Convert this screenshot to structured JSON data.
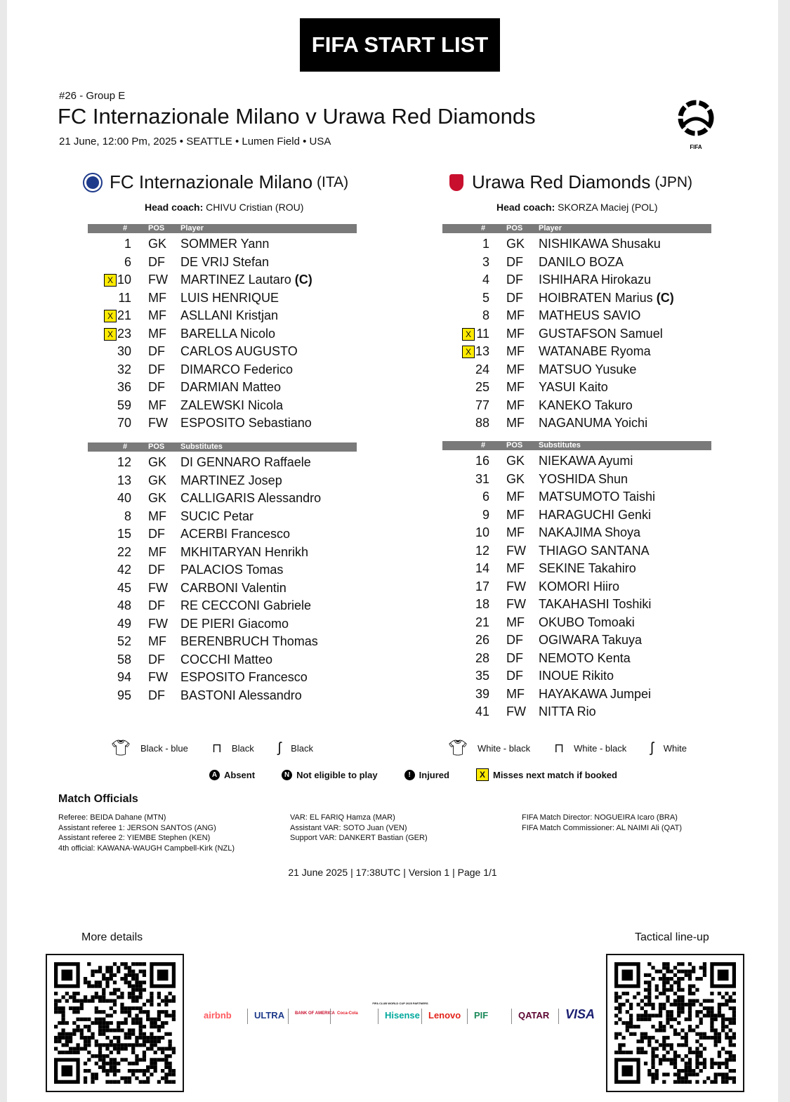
{
  "banner": "FIFA START LIST",
  "match": {
    "number": "#26  -  Group E",
    "title": "FC Internazionale Milano v Urawa Red Diamonds",
    "details": "21 June, 12:00 Pm, 2025 • SEATTLE • Lumen Field • USA",
    "logo_text": "CLUB WORLD CUP 25 FIFA"
  },
  "home": {
    "name": "FC Internazionale Milano",
    "country": "(ITA)",
    "coach_label": "Head coach:",
    "coach": "CHIVU Cristian (ROU)",
    "crest_color": "#1e3a8a",
    "starters_header": [
      "#",
      "POS",
      "Player"
    ],
    "starters": [
      {
        "num": "1",
        "pos": "GK",
        "name": "SOMMER Yann"
      },
      {
        "num": "6",
        "pos": "DF",
        "name": "DE VRIJ Stefan"
      },
      {
        "num": "10",
        "pos": "FW",
        "name": "MARTINEZ Lautaro",
        "captain": "(C)",
        "booked_warning": true
      },
      {
        "num": "11",
        "pos": "MF",
        "name": "LUIS HENRIQUE"
      },
      {
        "num": "21",
        "pos": "MF",
        "name": "ASLLANI Kristjan",
        "booked_warning": true
      },
      {
        "num": "23",
        "pos": "MF",
        "name": "BARELLA Nicolo",
        "booked_warning": true
      },
      {
        "num": "30",
        "pos": "DF",
        "name": "CARLOS AUGUSTO"
      },
      {
        "num": "32",
        "pos": "DF",
        "name": "DIMARCO Federico"
      },
      {
        "num": "36",
        "pos": "DF",
        "name": "DARMIAN Matteo"
      },
      {
        "num": "59",
        "pos": "MF",
        "name": "ZALEWSKI Nicola"
      },
      {
        "num": "70",
        "pos": "FW",
        "name": "ESPOSITO Sebastiano"
      }
    ],
    "subs_header": [
      "#",
      "POS",
      "Substitutes"
    ],
    "subs": [
      {
        "num": "12",
        "pos": "GK",
        "name": "DI GENNARO Raffaele"
      },
      {
        "num": "13",
        "pos": "GK",
        "name": "MARTINEZ Josep"
      },
      {
        "num": "40",
        "pos": "GK",
        "name": "CALLIGARIS Alessandro"
      },
      {
        "num": "8",
        "pos": "MF",
        "name": "SUCIC Petar"
      },
      {
        "num": "15",
        "pos": "DF",
        "name": "ACERBI Francesco"
      },
      {
        "num": "22",
        "pos": "MF",
        "name": "MKHITARYAN Henrikh"
      },
      {
        "num": "42",
        "pos": "DF",
        "name": "PALACIOS Tomas"
      },
      {
        "num": "45",
        "pos": "FW",
        "name": "CARBONI Valentin"
      },
      {
        "num": "48",
        "pos": "DF",
        "name": "RE CECCONI Gabriele"
      },
      {
        "num": "49",
        "pos": "FW",
        "name": "DE PIERI Giacomo"
      },
      {
        "num": "52",
        "pos": "MF",
        "name": "BERENBRUCH Thomas"
      },
      {
        "num": "58",
        "pos": "DF",
        "name": "COCCHI Matteo"
      },
      {
        "num": "94",
        "pos": "FW",
        "name": "ESPOSITO Francesco"
      },
      {
        "num": "95",
        "pos": "DF",
        "name": "BASTONI Alessandro"
      }
    ],
    "kit": {
      "shirt": "Black - blue",
      "shorts": "Black",
      "socks": "Black"
    }
  },
  "away": {
    "name": "Urawa Red Diamonds",
    "country": "(JPN)",
    "coach_label": "Head coach:",
    "coach": "SKORZA Maciej (POL)",
    "crest_color": "#c8102e",
    "starters_header": [
      "#",
      "POS",
      "Player"
    ],
    "starters": [
      {
        "num": "1",
        "pos": "GK",
        "name": "NISHIKAWA Shusaku"
      },
      {
        "num": "3",
        "pos": "DF",
        "name": "DANILO BOZA"
      },
      {
        "num": "4",
        "pos": "DF",
        "name": "ISHIHARA Hirokazu"
      },
      {
        "num": "5",
        "pos": "DF",
        "name": "HOIBRATEN Marius",
        "captain": "(C)"
      },
      {
        "num": "8",
        "pos": "MF",
        "name": "MATHEUS SAVIO"
      },
      {
        "num": "11",
        "pos": "MF",
        "name": "GUSTAFSON Samuel",
        "booked_warning": true
      },
      {
        "num": "13",
        "pos": "MF",
        "name": "WATANABE Ryoma",
        "booked_warning": true
      },
      {
        "num": "24",
        "pos": "MF",
        "name": "MATSUO Yusuke"
      },
      {
        "num": "25",
        "pos": "MF",
        "name": "YASUI Kaito"
      },
      {
        "num": "77",
        "pos": "MF",
        "name": "KANEKO Takuro"
      },
      {
        "num": "88",
        "pos": "MF",
        "name": "NAGANUMA Yoichi"
      }
    ],
    "subs_header": [
      "#",
      "POS",
      "Substitutes"
    ],
    "subs": [
      {
        "num": "16",
        "pos": "GK",
        "name": "NIEKAWA Ayumi"
      },
      {
        "num": "31",
        "pos": "GK",
        "name": "YOSHIDA Shun"
      },
      {
        "num": "6",
        "pos": "MF",
        "name": "MATSUMOTO Taishi"
      },
      {
        "num": "9",
        "pos": "MF",
        "name": "HARAGUCHI Genki"
      },
      {
        "num": "10",
        "pos": "MF",
        "name": "NAKAJIMA Shoya"
      },
      {
        "num": "12",
        "pos": "FW",
        "name": "THIAGO SANTANA"
      },
      {
        "num": "14",
        "pos": "MF",
        "name": "SEKINE Takahiro"
      },
      {
        "num": "17",
        "pos": "FW",
        "name": "KOMORI Hiiro"
      },
      {
        "num": "18",
        "pos": "FW",
        "name": "TAKAHASHI Toshiki"
      },
      {
        "num": "21",
        "pos": "MF",
        "name": "OKUBO Tomoaki"
      },
      {
        "num": "26",
        "pos": "DF",
        "name": "OGIWARA Takuya"
      },
      {
        "num": "28",
        "pos": "DF",
        "name": "NEMOTO Kenta"
      },
      {
        "num": "35",
        "pos": "DF",
        "name": "INOUE Rikito"
      },
      {
        "num": "39",
        "pos": "MF",
        "name": "HAYAKAWA Jumpei"
      },
      {
        "num": "41",
        "pos": "FW",
        "name": "NITTA Rio"
      }
    ],
    "kit": {
      "shirt": "White - black",
      "shorts": "White - black",
      "socks": "White"
    }
  },
  "legend": {
    "absent": {
      "symbol": "A",
      "label": "Absent"
    },
    "not_eligible": {
      "symbol": "N",
      "label": "Not eligible to play"
    },
    "injured": {
      "symbol": "!",
      "label": "Injured"
    },
    "booked": {
      "symbol": "X",
      "label": "Misses next match if booked"
    },
    "booked_color": "#ffea00"
  },
  "officials": {
    "title": "Match Officials",
    "col1": [
      "Referee: BEIDA Dahane (MTN)",
      "Assistant referee 1: JERSON SANTOS (ANG)",
      "Assistant referee 2: YIEMBE Stephen (KEN)",
      "4th official: KAWANA-WAUGH Campbell-Kirk (NZL)"
    ],
    "col2": [
      "VAR: EL FARIQ Hamza (MAR)",
      "Assistant VAR: SOTO Juan (VEN)",
      "Support VAR: DANKERT Bastian (GER)"
    ],
    "col3": [
      "FIFA Match Director: NOGUEIRA Icaro (BRA)",
      "FIFA Match Commissioner: AL NAIMI Ali (QAT)"
    ]
  },
  "footer": "21 June 2025 | 17:38UTC | Version 1 | Page 1/1",
  "qr": {
    "left_label": "More details",
    "right_label": "Tactical line-up"
  },
  "sponsors": {
    "heading": "FIFA CLUB WORLD CUP 2025 PARTNERS",
    "items": [
      {
        "name": "airbnb",
        "color": "#ff5a5f"
      },
      {
        "name": "ULTRA",
        "color": "#1d3a8a"
      },
      {
        "name": "BANK OF AMERICA",
        "color": "#c8102e"
      },
      {
        "name": "Coca-Cola",
        "color": "#e41e2b"
      },
      {
        "name": "Hisense",
        "color": "#00a99d"
      },
      {
        "name": "Lenovo",
        "color": "#e2231a"
      },
      {
        "name": "PIF",
        "color": "#1a8a5a"
      },
      {
        "name": "QATAR",
        "color": "#5c0632"
      },
      {
        "name": "VISA",
        "color": "#1a1f71"
      }
    ]
  }
}
